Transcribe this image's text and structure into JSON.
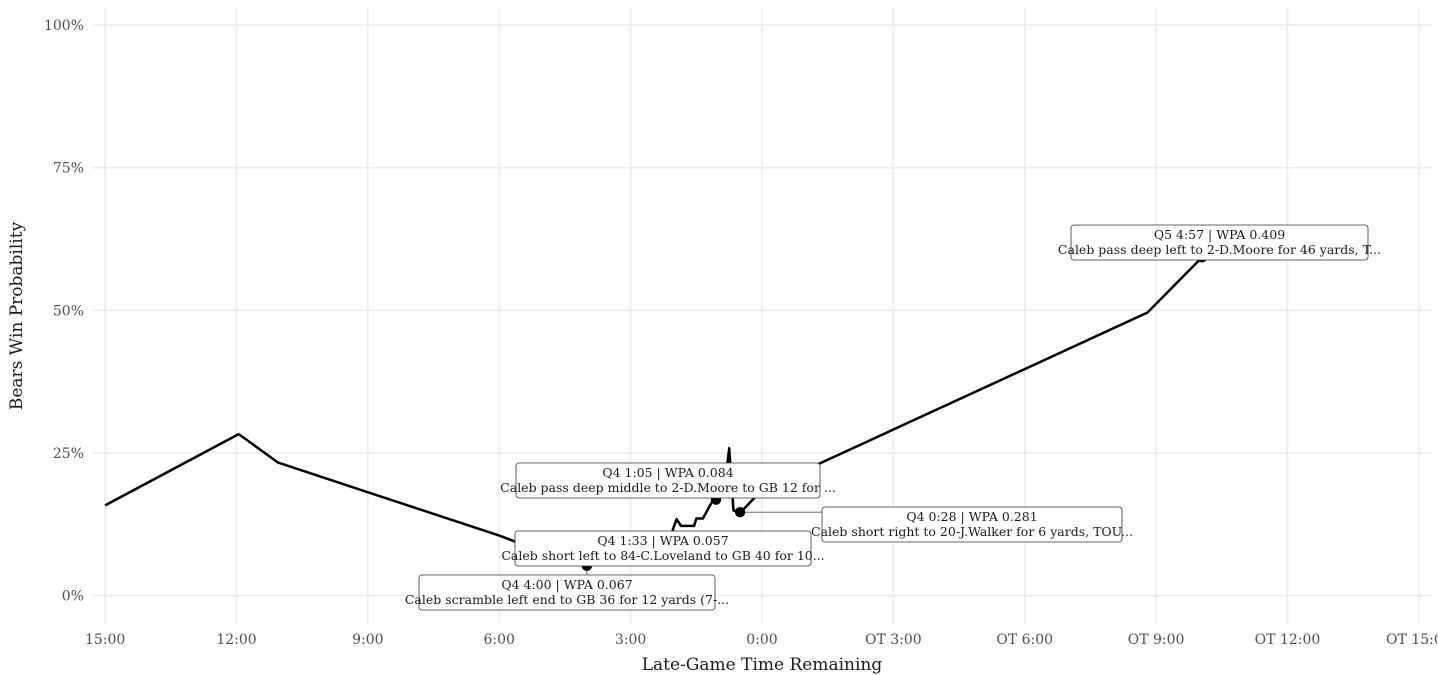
{
  "chart_data": {
    "type": "line",
    "title": "",
    "xlabel": "Late-Game Time Remaining",
    "ylabel": "Bears Win Probability",
    "xlim": [
      -15.3,
      15.3
    ],
    "ylim": [
      -0.05,
      1.03
    ],
    "grid": true,
    "legend": "none",
    "x_ticks": [
      {
        "value": -15,
        "label": "15:00"
      },
      {
        "value": -12,
        "label": "12:00"
      },
      {
        "value": -9,
        "label": "9:00"
      },
      {
        "value": -6,
        "label": "6:00"
      },
      {
        "value": -3,
        "label": "3:00"
      },
      {
        "value": 0,
        "label": "0:00"
      },
      {
        "value": 3,
        "label": "OT 3:00"
      },
      {
        "value": 6,
        "label": "OT 6:00"
      },
      {
        "value": 9,
        "label": "OT 9:00"
      },
      {
        "value": 12,
        "label": "OT 12:00"
      },
      {
        "value": 15,
        "label": "OT 15:00"
      }
    ],
    "y_ticks": [
      {
        "value": 0,
        "label": "0%"
      },
      {
        "value": 0.25,
        "label": "25%"
      },
      {
        "value": 0.5,
        "label": "50%"
      },
      {
        "value": 0.75,
        "label": "75%"
      },
      {
        "value": 1,
        "label": "100%"
      }
    ],
    "series": [
      {
        "x": [
          -15.0,
          -11.95,
          -11.05,
          -6.0,
          -4.55,
          -4.0,
          -3.6,
          -3.0,
          -2.75,
          -2.55,
          -2.35,
          -2.25,
          -2.05,
          -1.95,
          -1.85,
          -1.55,
          -1.5,
          -1.35,
          -1.15,
          -1.05,
          -0.95,
          -0.8,
          -0.75,
          -0.65,
          -0.5,
          -0.45,
          0.0,
          8.8,
          10.05
        ],
        "y": [
          0.158,
          0.283,
          0.233,
          0.105,
          0.063,
          0.052,
          0.11,
          0.054,
          0.075,
          0.097,
          0.095,
          0.105,
          0.112,
          0.134,
          0.122,
          0.122,
          0.135,
          0.135,
          0.163,
          0.168,
          0.216,
          0.225,
          0.258,
          0.149,
          0.146,
          0.149,
          0.185,
          0.496,
          0.593
        ]
      }
    ],
    "highlights": [
      {
        "x": -4.0,
        "y": 0.052
      },
      {
        "x": -1.05,
        "y": 0.168
      },
      {
        "x": -0.5,
        "y": 0.146
      },
      {
        "x": 10.05,
        "y": 0.593
      }
    ],
    "annotations": [
      {
        "line1": "Q5 4:57 | WPA 0.409",
        "line2": "Caleb pass deep left to 2-D.Moore for 46 yards, T..."
      },
      {
        "line1": "Q4 1:05 | WPA 0.084",
        "line2": "Caleb pass deep middle to 2-D.Moore to GB 12 for ..."
      },
      {
        "line1": "Q4 0:28 | WPA 0.281",
        "line2": "Caleb short right to 20-J.Walker for 6 yards, TOU..."
      },
      {
        "line1": "Q4 1:33 | WPA 0.057",
        "line2": "Caleb short left to 84-C.Loveland to GB 40 for 10..."
      },
      {
        "line1": "Q4 4:00 | WPA 0.067",
        "line2": "Caleb scramble left end to GB 36 for 12 yards (7-..."
      }
    ],
    "colors": {
      "line": "#000000",
      "grid": "#ebebeb",
      "label_border": "#333333",
      "background": "#ffffff"
    }
  }
}
